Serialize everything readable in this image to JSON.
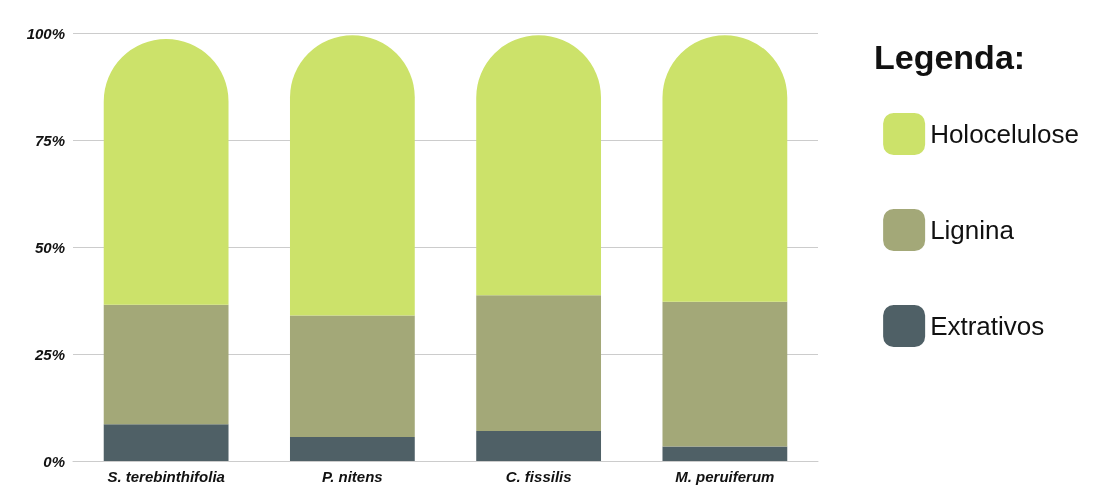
{
  "chart_data": {
    "type": "bar",
    "stacked": true,
    "legend_title": "Legenda:",
    "legend": "right",
    "grid": "y",
    "categories": [
      "S. terebinthifolia",
      "P. nitens",
      "C. fissilis",
      "M. peruiferum"
    ],
    "series": [
      {
        "name": "Extrativos",
        "color": "#4f6066",
        "values": [
          8.6,
          5.6,
          7.0,
          3.4
        ]
      },
      {
        "name": "Lignina",
        "color": "#a3a878",
        "values": [
          27.9,
          28.4,
          31.7,
          33.8
        ]
      },
      {
        "name": "Holocelulose",
        "color": "#cce26a",
        "values": [
          62.1,
          65.5,
          60.8,
          62.3
        ]
      }
    ],
    "ylim": [
      0,
      100
    ],
    "yticks": [
      {
        "value": 0,
        "label": "0%"
      },
      {
        "value": 25,
        "label": "25%"
      },
      {
        "value": 50,
        "label": "50%"
      },
      {
        "value": 75,
        "label": "75%"
      },
      {
        "value": 100,
        "label": "100%"
      }
    ]
  }
}
